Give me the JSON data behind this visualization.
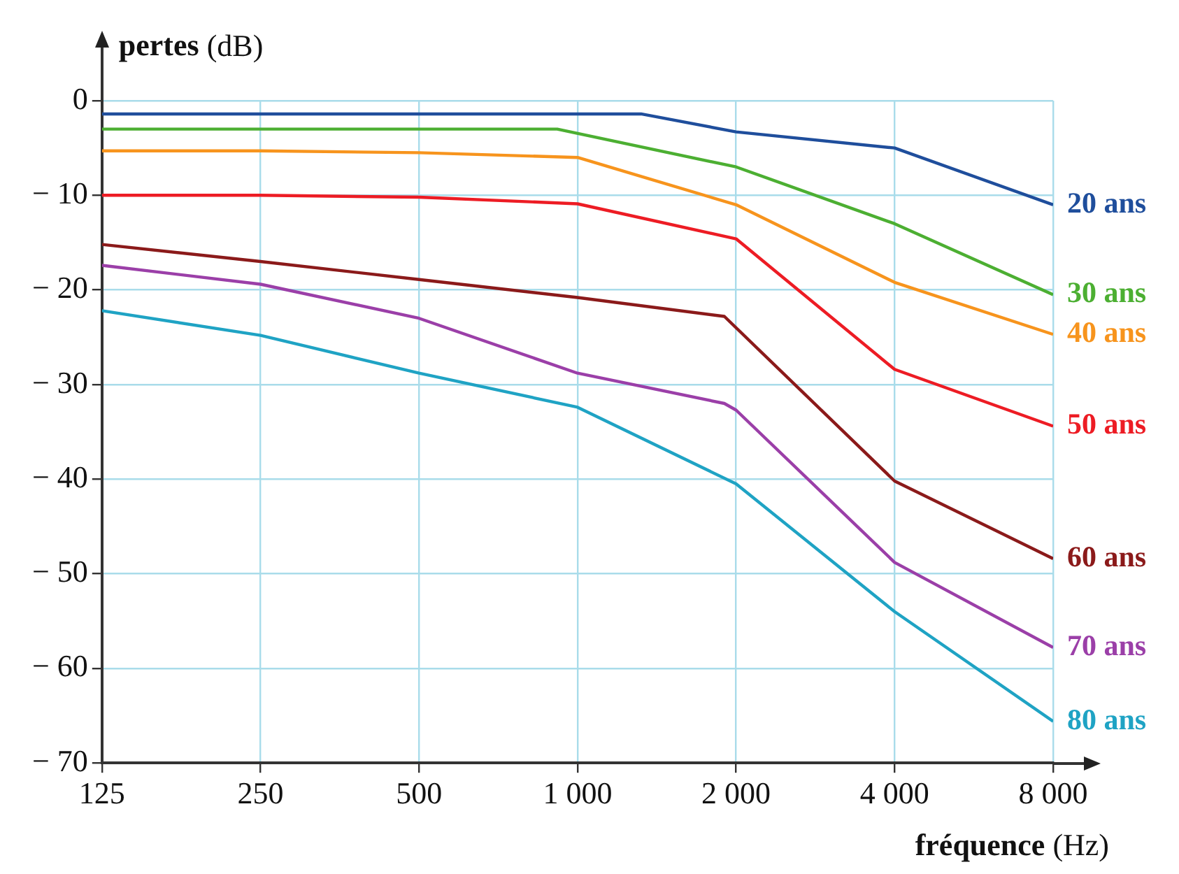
{
  "chart_data": {
    "type": "line",
    "xlabel": "fréquence (Hz)",
    "ylabel": "pertes (dB)",
    "log": "x",
    "grid": true,
    "legend": false,
    "marker": "none",
    "line_style": "solid",
    "xlim": [
      125,
      8000
    ],
    "xticks": [
      125,
      250,
      500,
      {
        "value": 1000,
        "label": "1 000"
      },
      {
        "value": 2000,
        "label": "2 000"
      },
      {
        "value": 4000,
        "label": "4 000"
      },
      {
        "value": 8000,
        "label": "8 000"
      }
    ],
    "ylim": [
      -70,
      0
    ],
    "yticks": [
      0,
      {
        "value": -10,
        "label": "− 10"
      },
      {
        "value": -20,
        "label": "− 20"
      },
      {
        "value": -30,
        "label": "− 30"
      },
      {
        "value": -40,
        "label": "− 40"
      },
      {
        "value": -50,
        "label": "− 50"
      },
      {
        "value": -60,
        "label": "− 60"
      },
      {
        "value": -70,
        "label": "− 70"
      }
    ],
    "series": [
      {
        "name": "20 ans",
        "color": "#1f4e9c",
        "x": [
          125,
          250,
          500,
          1000,
          1320,
          2000,
          4000,
          8000
        ],
        "values": [
          -1.4,
          -1.4,
          -1.4,
          -1.4,
          -1.4,
          -3.3,
          -5,
          -11
        ]
      },
      {
        "name": "30 ans",
        "color": "#4caf32",
        "x": [
          125,
          250,
          500,
          915,
          2000,
          4000,
          8000
        ],
        "values": [
          -3,
          -3,
          -3,
          -3,
          -7,
          -13,
          -20.5
        ]
      },
      {
        "name": "40 ans",
        "color": "#f7941d",
        "x": [
          125,
          250,
          500,
          1000,
          2000,
          4000,
          8000
        ],
        "values": [
          -5.3,
          -5.3,
          -5.5,
          -6,
          -11,
          -19.2,
          -24.7
        ]
      },
      {
        "name": "50 ans",
        "color": "#ed1c24",
        "x": [
          125,
          250,
          500,
          1000,
          2000,
          4000,
          8000
        ],
        "values": [
          -10,
          -10,
          -10.2,
          -10.9,
          -14.6,
          -28.4,
          -34.4
        ]
      },
      {
        "name": "60 ans",
        "color": "#8b1a1a",
        "x": [
          125,
          250,
          500,
          1000,
          1900,
          4000,
          8000
        ],
        "values": [
          -15.2,
          -17,
          -18.9,
          -20.8,
          -22.8,
          -40.2,
          -48.4
        ]
      },
      {
        "name": "70 ans",
        "color": "#9b3fa8",
        "x": [
          125,
          250,
          500,
          1000,
          1900,
          2000,
          4000,
          8000
        ],
        "values": [
          -17.4,
          -19.4,
          -23,
          -28.8,
          -32,
          -32.7,
          -48.8,
          -57.8
        ]
      },
      {
        "name": "80 ans",
        "color": "#1fa3c4",
        "x": [
          125,
          250,
          500,
          1000,
          2000,
          4000,
          8000
        ],
        "values": [
          -22.2,
          -24.8,
          -28.8,
          -32.4,
          -40.5,
          -54,
          -65.6
        ]
      }
    ]
  }
}
